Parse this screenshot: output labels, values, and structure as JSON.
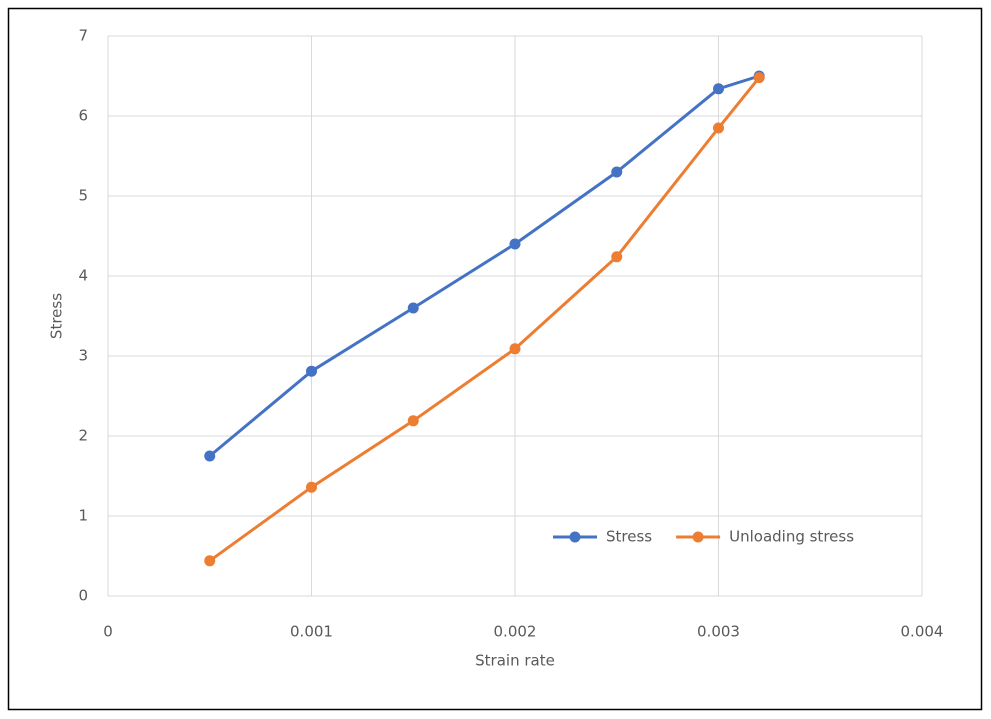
{
  "chart_data": {
    "type": "line",
    "x_label": "Strain rate",
    "y_label": "Stress",
    "x": [
      0.0005,
      0.001,
      0.0015,
      0.002,
      0.0025,
      0.003,
      0.0032
    ],
    "series": [
      {
        "name": "Stress",
        "color": "#4472c4",
        "values": [
          1.75,
          2.81,
          3.6,
          4.4,
          5.3,
          6.34,
          6.5
        ]
      },
      {
        "name": "Unloading stress",
        "color": "#ed7d31",
        "values": [
          0.44,
          1.36,
          2.19,
          3.09,
          4.24,
          5.85,
          6.48
        ]
      }
    ],
    "xlim": [
      0,
      0.004
    ],
    "xticks": [
      0,
      0.001,
      0.002,
      0.003,
      0.004
    ],
    "ylim": [
      0,
      7
    ],
    "yticks": [
      0,
      1,
      2,
      3,
      4,
      5,
      6,
      7
    ],
    "grid": true,
    "legend": "lower right"
  }
}
